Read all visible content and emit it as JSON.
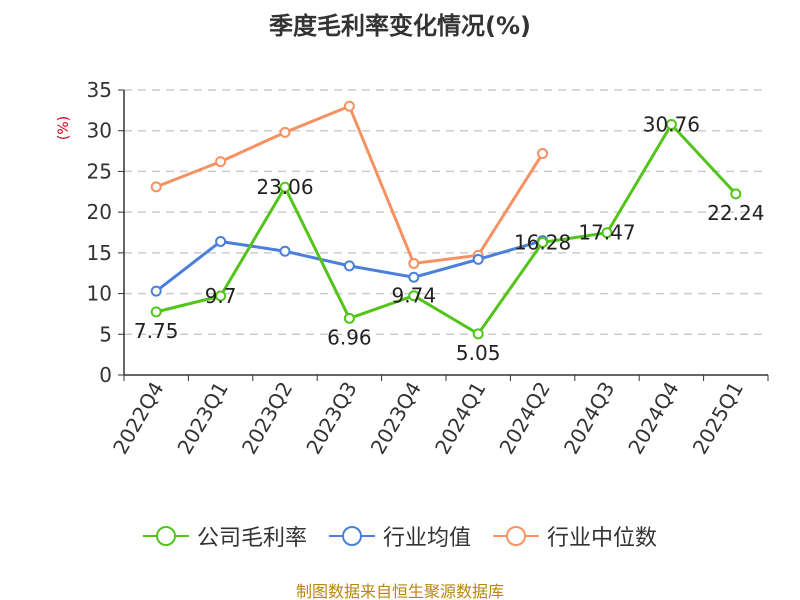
{
  "chart_data": {
    "type": "line",
    "title": "季度毛利率变化情况(%)",
    "ylabel": "(%)",
    "xlabel": "",
    "categories": [
      "2022Q4",
      "2023Q1",
      "2023Q2",
      "2023Q3",
      "2023Q4",
      "2024Q1",
      "2024Q2",
      "2024Q3",
      "2024Q4",
      "2025Q1"
    ],
    "ylim": [
      0,
      35
    ],
    "yticks": [
      "0",
      "5",
      "10",
      "15",
      "20",
      "25",
      "30",
      "35"
    ],
    "grid": true,
    "legend_position": "bottom",
    "series": [
      {
        "name": "公司毛利率",
        "color": "#52c41a",
        "values": [
          7.75,
          9.7,
          23.06,
          6.96,
          9.74,
          5.05,
          16.28,
          17.47,
          30.76,
          22.24
        ],
        "labels": [
          "7.75",
          "9.7",
          "23.06",
          "6.96",
          "9.74",
          "5.05",
          "16.28",
          "17.47",
          "30.76",
          "22.24"
        ]
      },
      {
        "name": "行业均值",
        "color": "#4a7fdc",
        "values": [
          10.3,
          16.4,
          15.2,
          13.4,
          12.0,
          14.2,
          16.5,
          null,
          null,
          null
        ]
      },
      {
        "name": "行业中位数",
        "color": "#f79162",
        "values": [
          23.1,
          26.2,
          29.8,
          33.0,
          13.7,
          14.7,
          27.2,
          null,
          null,
          null
        ]
      }
    ]
  },
  "source_note": "制图数据来自恒生聚源数据库"
}
